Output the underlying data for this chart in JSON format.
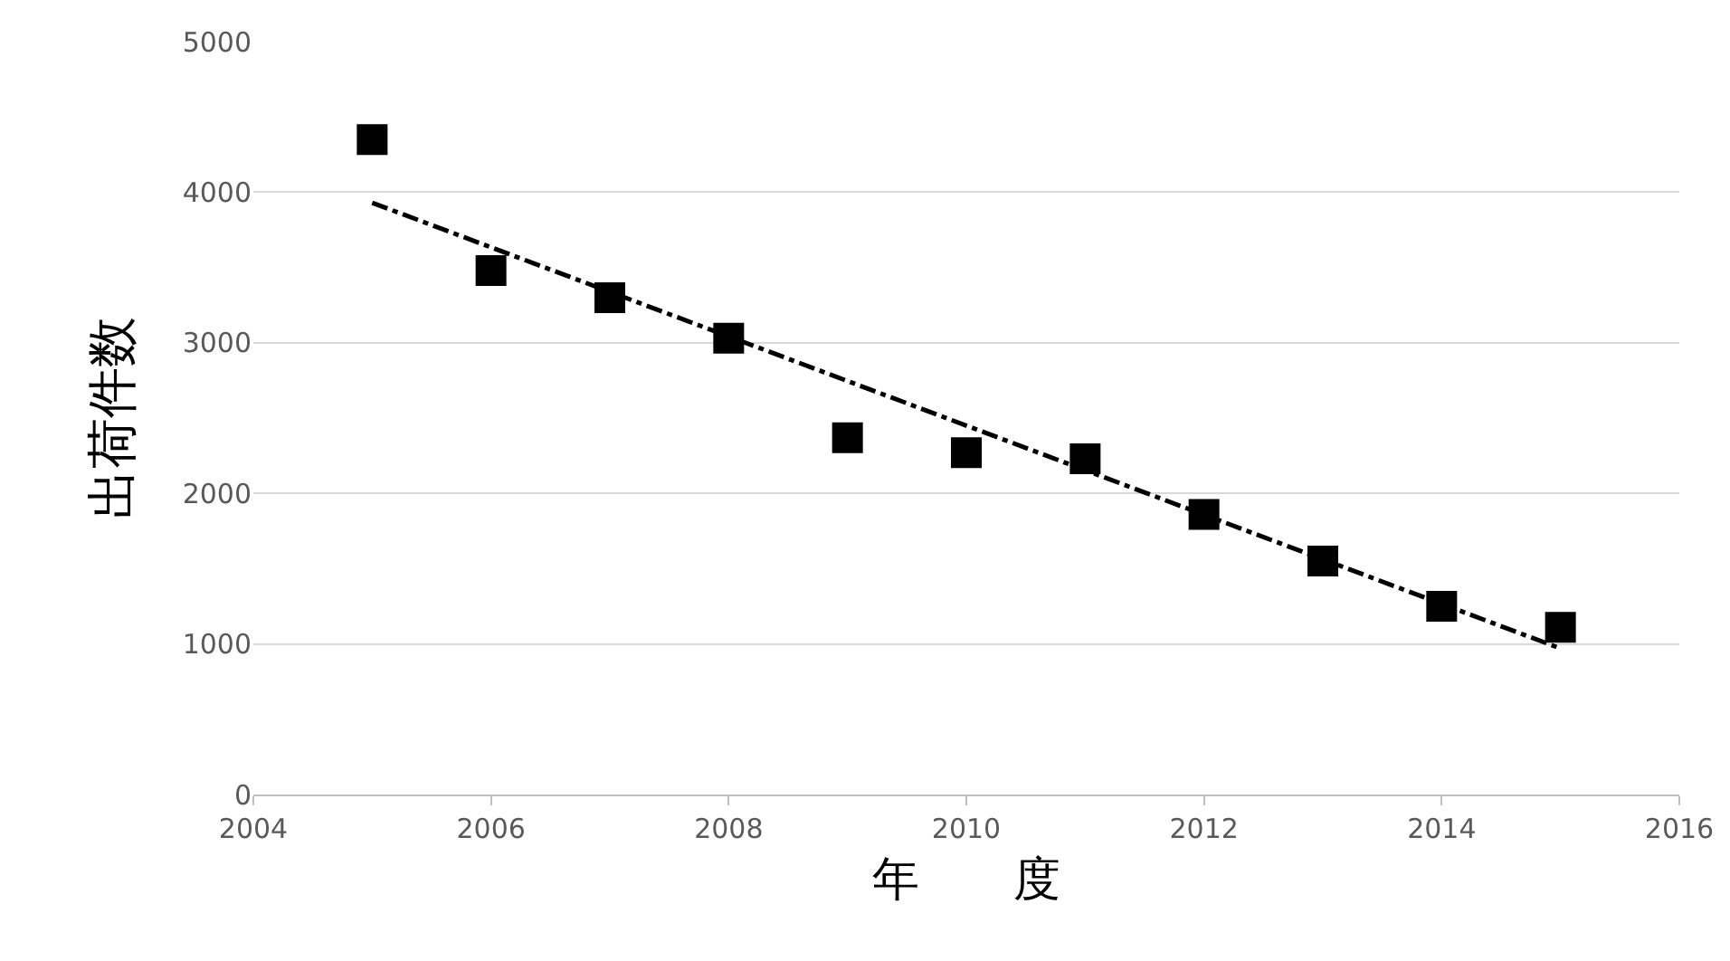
{
  "chart_data": {
    "type": "scatter",
    "xlabel": "年　　度",
    "ylabel": "出荷件数",
    "xlim": [
      2004,
      2016
    ],
    "xticks": [
      2004,
      2006,
      2008,
      2010,
      2012,
      2014,
      2016
    ],
    "ylim": [
      0,
      5000
    ],
    "yticks": [
      0,
      1000,
      2000,
      3000,
      4000,
      5000
    ],
    "grid": "y",
    "legend": false,
    "series": [
      {
        "marker": "square",
        "color": "#000000",
        "x": [
          2005,
          2006,
          2007,
          2008,
          2009,
          2010,
          2011,
          2012,
          2013,
          2014,
          2015
        ],
        "values": [
          4350,
          3480,
          3300,
          3030,
          2370,
          2270,
          2230,
          1860,
          1550,
          1250,
          1110
        ]
      },
      {
        "type": "line",
        "color": "#000000",
        "line_style": "dashed",
        "x": [
          2005,
          2015
        ],
        "values": [
          3930,
          970
        ]
      }
    ]
  }
}
